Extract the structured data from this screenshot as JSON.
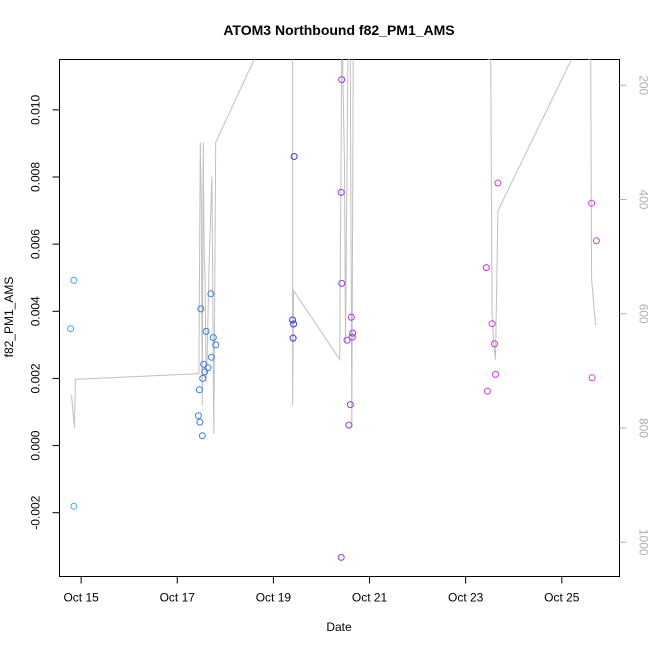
{
  "chart_data": {
    "type": "scatter",
    "title": "ATOM3 Northbound f82_PM1_AMS",
    "xlabel": "Date",
    "ylabel": "f82_PM1_AMS",
    "x_unit": "days of October",
    "xlim": [
      14.55,
      26.2
    ],
    "ylim": [
      -0.0039,
      0.0115
    ],
    "x_ticks": [
      {
        "value": 15,
        "label": "Oct 15"
      },
      {
        "value": 17,
        "label": "Oct 17"
      },
      {
        "value": 19,
        "label": "Oct 19"
      },
      {
        "value": 21,
        "label": "Oct 21"
      },
      {
        "value": 23,
        "label": "Oct 23"
      },
      {
        "value": 25,
        "label": "Oct 25"
      }
    ],
    "y_ticks": [
      {
        "value": -0.002,
        "label": "-0.002"
      },
      {
        "value": 0.0,
        "label": "0.000"
      },
      {
        "value": 0.002,
        "label": "0.002"
      },
      {
        "value": 0.004,
        "label": "0.004"
      },
      {
        "value": 0.006,
        "label": "0.006"
      },
      {
        "value": 0.008,
        "label": "0.008"
      },
      {
        "value": 0.01,
        "label": "0.010"
      }
    ],
    "secondary_axis": {
      "ylim": [
        1060,
        155
      ],
      "ticks": [
        {
          "value": 200,
          "label": "200"
        },
        {
          "value": 400,
          "label": "400"
        },
        {
          "value": 600,
          "label": "600"
        },
        {
          "value": 800,
          "label": "800"
        },
        {
          "value": 1000,
          "label": "1000"
        }
      ],
      "color": "#b0b0b0"
    },
    "grid": false,
    "legend": "none",
    "points": [
      {
        "x": 14.78,
        "y": 0.00348,
        "color": "#3aaee0"
      },
      {
        "x": 14.85,
        "y": 0.00492,
        "color": "#3aaee0"
      },
      {
        "x": 14.85,
        "y": -0.00181,
        "color": "#3aaee0"
      },
      {
        "x": 17.44,
        "y": 0.00089,
        "color": "#3a7fd8"
      },
      {
        "x": 17.46,
        "y": 0.00166,
        "color": "#3a7fd8"
      },
      {
        "x": 17.47,
        "y": 0.0007,
        "color": "#3a7fd8"
      },
      {
        "x": 17.49,
        "y": 0.00407,
        "color": "#3a7fd8"
      },
      {
        "x": 17.52,
        "y": 0.00029,
        "color": "#3a7fd8"
      },
      {
        "x": 17.53,
        "y": 0.002,
        "color": "#3a7fd8"
      },
      {
        "x": 17.55,
        "y": 0.00242,
        "color": "#3a7fd8"
      },
      {
        "x": 17.57,
        "y": 0.0022,
        "color": "#3a7fd8"
      },
      {
        "x": 17.6,
        "y": 0.0034,
        "color": "#3a7fd8"
      },
      {
        "x": 17.64,
        "y": 0.00232,
        "color": "#3a7fd8"
      },
      {
        "x": 17.7,
        "y": 0.00452,
        "color": "#3a7fd8"
      },
      {
        "x": 17.71,
        "y": 0.00263,
        "color": "#3a7fd8"
      },
      {
        "x": 17.75,
        "y": 0.00322,
        "color": "#3a7fd8"
      },
      {
        "x": 17.8,
        "y": 0.003,
        "color": "#3a7fd8"
      },
      {
        "x": 19.4,
        "y": 0.00374,
        "color": "#3a3ad8"
      },
      {
        "x": 19.42,
        "y": 0.00362,
        "color": "#3a3ad8"
      },
      {
        "x": 19.41,
        "y": 0.0032,
        "color": "#3a3ad8"
      },
      {
        "x": 19.43,
        "y": 0.00861,
        "color": "#3a3ad8"
      },
      {
        "x": 20.42,
        "y": 0.0109,
        "color": "#a03ad8"
      },
      {
        "x": 20.41,
        "y": 0.00754,
        "color": "#a03ad8"
      },
      {
        "x": 20.42,
        "y": 0.00483,
        "color": "#a03ad8"
      },
      {
        "x": 20.41,
        "y": -0.00333,
        "color": "#a03ad8"
      },
      {
        "x": 20.53,
        "y": 0.00314,
        "color": "#a03ad8"
      },
      {
        "x": 20.57,
        "y": 0.00061,
        "color": "#a03ad8"
      },
      {
        "x": 20.6,
        "y": 0.00122,
        "color": "#a03ad8"
      },
      {
        "x": 20.62,
        "y": 0.00382,
        "color": "#a03ad8"
      },
      {
        "x": 20.64,
        "y": 0.00323,
        "color": "#a03ad8"
      },
      {
        "x": 20.65,
        "y": 0.00335,
        "color": "#a03ad8"
      },
      {
        "x": 23.43,
        "y": 0.0053,
        "color": "#c83ad8"
      },
      {
        "x": 23.45,
        "y": 0.00162,
        "color": "#c83ad8"
      },
      {
        "x": 23.55,
        "y": 0.00363,
        "color": "#c83ad8"
      },
      {
        "x": 23.6,
        "y": 0.00303,
        "color": "#c83ad8"
      },
      {
        "x": 23.62,
        "y": 0.00212,
        "color": "#c83ad8"
      },
      {
        "x": 23.67,
        "y": 0.00782,
        "color": "#c83ad8"
      },
      {
        "x": 25.62,
        "y": 0.00722,
        "color": "#d83ad8"
      },
      {
        "x": 25.63,
        "y": 0.00202,
        "color": "#d83ad8"
      },
      {
        "x": 25.72,
        "y": 0.0061,
        "color": "#d83ad8"
      }
    ],
    "secondary_lines": [
      {
        "color": "#c0c0c0",
        "points": [
          [
            14.8,
            742
          ],
          [
            14.86,
            800
          ],
          [
            14.88,
            715
          ],
          [
            17.4,
            705
          ],
          [
            17.45,
            705
          ],
          [
            17.48,
            300
          ],
          [
            17.5,
            400
          ],
          [
            17.52,
            760
          ],
          [
            17.54,
            300
          ],
          [
            17.56,
            500
          ],
          [
            17.58,
            540
          ],
          [
            17.6,
            720
          ],
          [
            17.62,
            680
          ],
          [
            17.66,
            520
          ],
          [
            17.72,
            360
          ],
          [
            17.76,
            810
          ],
          [
            17.8,
            300
          ],
          [
            18.6,
            155
          ]
        ]
      },
      {
        "color": "#c0c0c0",
        "points": [
          [
            19.4,
            155
          ],
          [
            19.4,
            760
          ],
          [
            19.42,
            560
          ],
          [
            20.38,
            680
          ],
          [
            20.42,
            155
          ],
          [
            20.44,
            155
          ],
          [
            20.48,
            340
          ],
          [
            20.5,
            650
          ],
          [
            20.55,
            155
          ],
          [
            20.6,
            155
          ],
          [
            20.63,
            800
          ],
          [
            20.66,
            155
          ]
        ]
      },
      {
        "color": "#c0c0c0",
        "points": [
          [
            23.45,
            155
          ],
          [
            23.52,
            155
          ],
          [
            23.55,
            600
          ],
          [
            23.58,
            650
          ],
          [
            23.62,
            680
          ],
          [
            23.67,
            420
          ],
          [
            25.2,
            155
          ]
        ]
      },
      {
        "color": "#c0c0c0",
        "points": [
          [
            25.55,
            155
          ],
          [
            25.6,
            155
          ],
          [
            25.62,
            540
          ],
          [
            25.7,
            620
          ]
        ]
      }
    ]
  }
}
